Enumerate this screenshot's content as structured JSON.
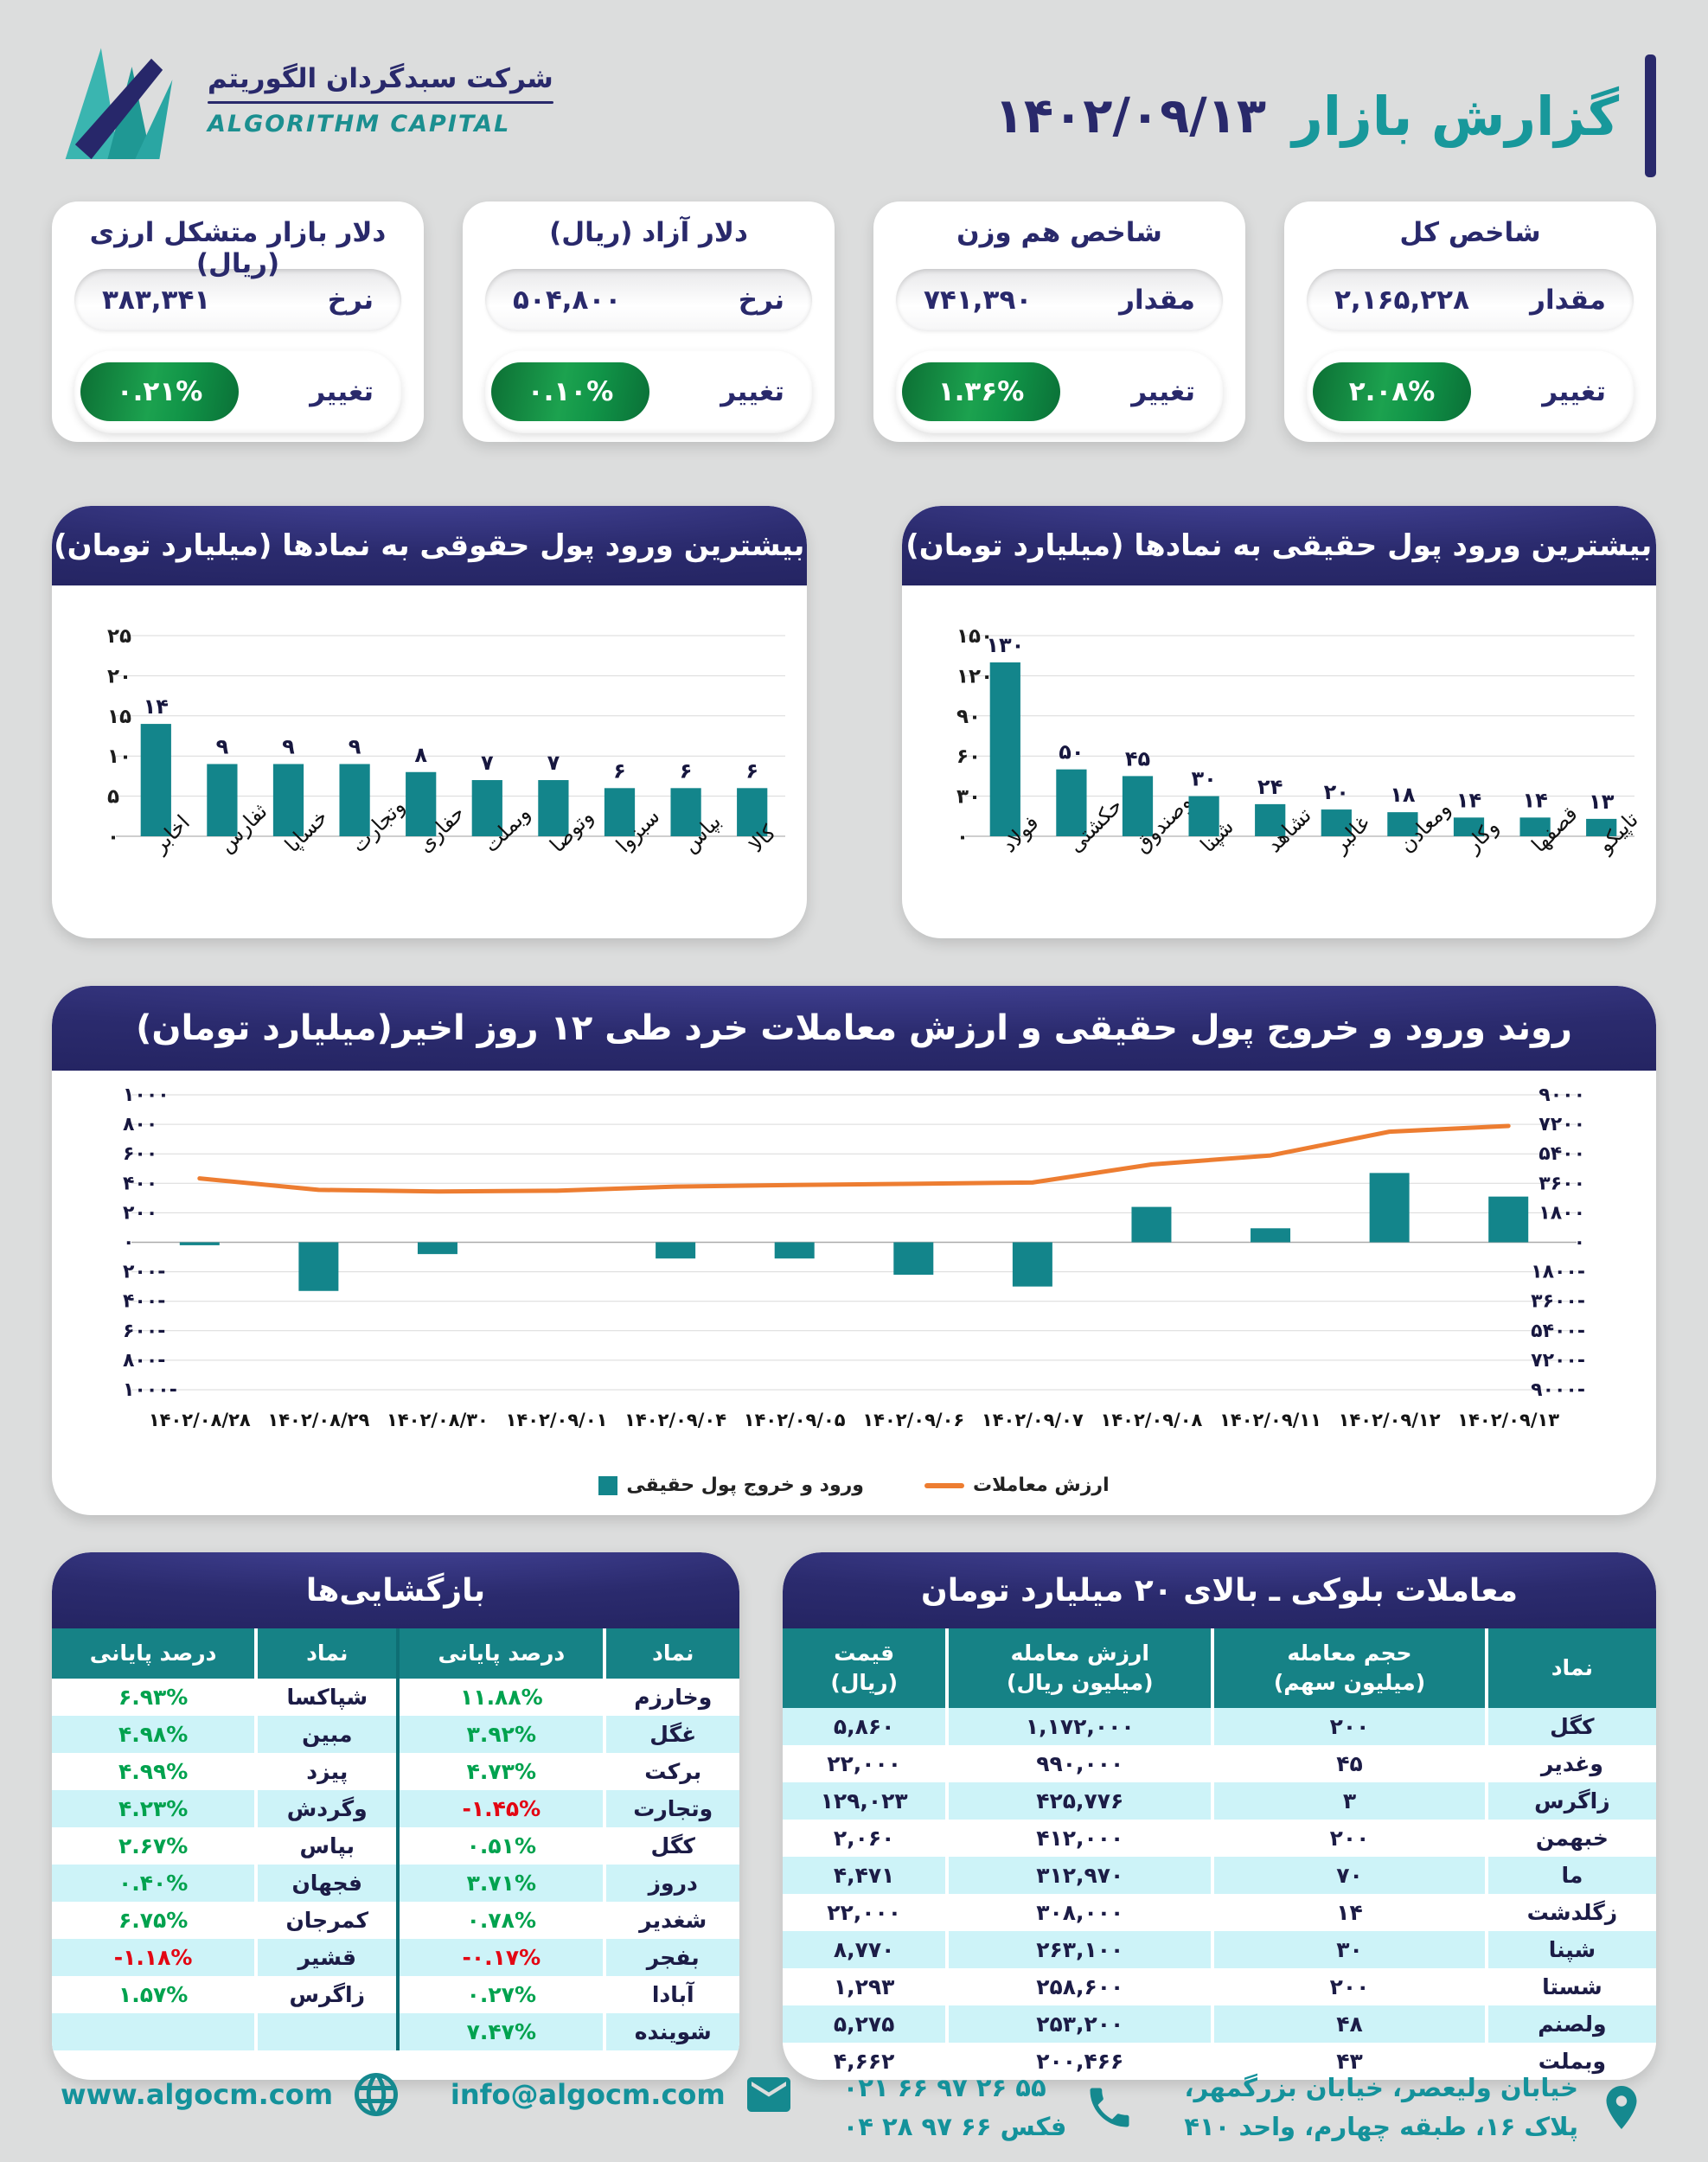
{
  "colors": {
    "background": "#DCDDDD",
    "navy": "#29296B",
    "teal": "#18989B",
    "bar_teal": "#13858B",
    "green_badge": "#13984A",
    "green_text": "#00A24E",
    "red_text": "#E30613",
    "orange_line": "#ED7D31",
    "row_cyan": "#CDF3F8",
    "table_header_teal": "#168286"
  },
  "header": {
    "title": "گزارش بازار",
    "date": "۱۴۰۲/۰۹/۱۳",
    "company_fa": "شرکت سبدگردان الگوریتم",
    "company_en": "ALGORITHM CAPITAL"
  },
  "stat_cards": [
    {
      "title": "شاخص کل",
      "value_label": "مقدار",
      "value": "۲,۱۶۵,۲۲۸",
      "change_label": "تغییر",
      "change": "۲.۰۸%"
    },
    {
      "title": "شاخص هم وزن",
      "value_label": "مقدار",
      "value": "۷۴۱,۳۹۰",
      "change_label": "تغییر",
      "change": "۱.۳۶%"
    },
    {
      "title": "دلار آزاد (ریال)",
      "value_label": "نرخ",
      "value": "۵۰۴,۸۰۰",
      "change_label": "تغییر",
      "change": "۰.۱۰%"
    },
    {
      "title": "دلار بازار متشکل ارزی (ریال)",
      "value_label": "نرخ",
      "value": "۳۸۳,۳۴۱",
      "change_label": "تغییر",
      "change": "۰.۲۱%"
    }
  ],
  "chart_data": [
    {
      "id": "legal_inflow",
      "type": "bar",
      "title": "بیشترین ورود پول حقوقی به نمادها (میلیارد تومان)",
      "categories": [
        "اخابر",
        "ثفارس",
        "خساپا",
        "وتجارت",
        "حفاری",
        "وبملت",
        "وتوصا",
        "سبزوا",
        "بپاس",
        "کالا"
      ],
      "values": [
        14,
        9,
        9,
        9,
        8,
        7,
        7,
        6,
        6,
        6
      ],
      "ylim": [
        0,
        25
      ],
      "ystep": 5,
      "grid": true,
      "bar_color": "#13858B"
    },
    {
      "id": "real_inflow",
      "type": "bar",
      "title": "بیشترین ورود پول حقیقی به نمادها (میلیارد تومان)",
      "categories": [
        "فولاد",
        "حکشتی",
        "وصندوق",
        "شپنا",
        "تشاهد",
        "غالبر",
        "ومعادن",
        "وکار",
        "قصفها",
        "تاپیکو"
      ],
      "values": [
        130,
        50,
        45,
        30,
        24,
        20,
        18,
        14,
        14,
        13
      ],
      "ylim": [
        0,
        150
      ],
      "ystep": 30,
      "grid": true,
      "bar_color": "#13858B"
    },
    {
      "id": "trend",
      "type": "bar+line",
      "title": "روند ورود و خروج پول حقیقی و ارزش معاملات خرد طی ۱۲ روز اخیر(میلیارد تومان)",
      "categories": [
        "۱۴۰۲/۰۸/۲۸",
        "۱۴۰۲/۰۸/۲۹",
        "۱۴۰۲/۰۸/۳۰",
        "۱۴۰۲/۰۹/۰۱",
        "۱۴۰۲/۰۹/۰۴",
        "۱۴۰۲/۰۹/۰۵",
        "۱۴۰۲/۰۹/۰۶",
        "۱۴۰۲/۰۹/۰۷",
        "۱۴۰۲/۰۹/۰۸",
        "۱۴۰۲/۰۹/۱۱",
        "۱۴۰۲/۰۹/۱۲",
        "۱۴۰۲/۰۹/۱۳"
      ],
      "series": [
        {
          "name": "ورود و خروج پول حقیقی",
          "type": "bar",
          "axis": "left",
          "color": "#13858B",
          "values": [
            -20,
            -330,
            -80,
            0,
            -110,
            -110,
            -220,
            -300,
            240,
            95,
            470,
            310
          ]
        },
        {
          "name": "ارزش معاملات",
          "type": "line",
          "axis": "right",
          "color": "#ED7D31",
          "values": [
            3900,
            3200,
            3100,
            3150,
            3400,
            3500,
            3570,
            3650,
            4750,
            5300,
            6750,
            7100
          ]
        }
      ],
      "left_ylim": [
        -1000,
        1000
      ],
      "left_ystep": 200,
      "right_ylim": [
        -9000,
        9000
      ],
      "right_ystep": 1800,
      "grid": true,
      "legend_position": "bottom"
    }
  ],
  "tables": {
    "block_trades": {
      "title": "معاملات بلوکی ـ بالای ۲۰ میلیارد تومان",
      "columns": [
        "نماد",
        "حجم معامله\n(میلیون سهم)",
        "ارزش معامله\n(میلیون ریال)",
        "قیمت\n(ریال)"
      ],
      "rows": [
        [
          [
            "کگل",
            ""
          ],
          [
            "۲۰۰",
            "num"
          ],
          [
            "۱,۱۷۲,۰۰۰",
            "num"
          ],
          [
            "۵,۸۶۰",
            "num"
          ]
        ],
        [
          [
            "وغدیر",
            ""
          ],
          [
            "۴۵",
            "num"
          ],
          [
            "۹۹۰,۰۰۰",
            "num"
          ],
          [
            "۲۲,۰۰۰",
            "num"
          ]
        ],
        [
          [
            "زاگرس",
            ""
          ],
          [
            "۳",
            "num"
          ],
          [
            "۴۲۵,۷۷۶",
            "num"
          ],
          [
            "۱۲۹,۰۲۳",
            "num"
          ]
        ],
        [
          [
            "خبهمن",
            ""
          ],
          [
            "۲۰۰",
            "num"
          ],
          [
            "۴۱۲,۰۰۰",
            "num"
          ],
          [
            "۲,۰۶۰",
            "num"
          ]
        ],
        [
          [
            "ما",
            ""
          ],
          [
            "۷۰",
            "num"
          ],
          [
            "۳۱۲,۹۷۰",
            "num"
          ],
          [
            "۴,۴۷۱",
            "num"
          ]
        ],
        [
          [
            "زگلدشت",
            ""
          ],
          [
            "۱۴",
            "num"
          ],
          [
            "۳۰۸,۰۰۰",
            "num"
          ],
          [
            "۲۲,۰۰۰",
            "num"
          ]
        ],
        [
          [
            "شپنا",
            ""
          ],
          [
            "۳۰",
            "num"
          ],
          [
            "۲۶۳,۱۰۰",
            "num"
          ],
          [
            "۸,۷۷۰",
            "num"
          ]
        ],
        [
          [
            "شستا",
            ""
          ],
          [
            "۲۰۰",
            "num"
          ],
          [
            "۲۵۸,۶۰۰",
            "num"
          ],
          [
            "۱,۲۹۳",
            "num"
          ]
        ],
        [
          [
            "ولصنم",
            ""
          ],
          [
            "۴۸",
            "num"
          ],
          [
            "۲۵۳,۲۰۰",
            "num"
          ],
          [
            "۵,۲۷۵",
            "num"
          ]
        ],
        [
          [
            "وبملت",
            ""
          ],
          [
            "۴۳",
            "num"
          ],
          [
            "۲۰۰,۴۶۶",
            "num"
          ],
          [
            "۴,۶۶۲",
            "num"
          ]
        ]
      ]
    },
    "reopenings": {
      "title": "بازگشایی‌ها",
      "columns": [
        "نماد",
        "درصد پایانی",
        "نماد",
        "درصد پایانی"
      ],
      "rows": [
        [
          [
            "وخارزم",
            ""
          ],
          [
            "۱۱.۸۸%",
            "num g"
          ],
          [
            "شپاکسا",
            ""
          ],
          [
            "۶.۹۳%",
            "num g"
          ]
        ],
        [
          [
            "غگل",
            ""
          ],
          [
            "۳.۹۲%",
            "num g"
          ],
          [
            "مبین",
            ""
          ],
          [
            "۴.۹۸%",
            "num g"
          ]
        ],
        [
          [
            "برکت",
            ""
          ],
          [
            "۴.۷۳%",
            "num g"
          ],
          [
            "پیزد",
            ""
          ],
          [
            "۴.۹۹%",
            "num g"
          ]
        ],
        [
          [
            "وتجارت",
            ""
          ],
          [
            "-۱.۴۵%",
            "num r"
          ],
          [
            "وگردش",
            ""
          ],
          [
            "۴.۲۳%",
            "num g"
          ]
        ],
        [
          [
            "کگل",
            ""
          ],
          [
            "۰.۵۱%",
            "num g"
          ],
          [
            "بپاس",
            ""
          ],
          [
            "۲.۶۷%",
            "num g"
          ]
        ],
        [
          [
            "دروز",
            ""
          ],
          [
            "۳.۷۱%",
            "num g"
          ],
          [
            "فجهان",
            ""
          ],
          [
            "۰.۴۰%",
            "num g"
          ]
        ],
        [
          [
            "شغدیر",
            ""
          ],
          [
            "۰.۷۸%",
            "num g"
          ],
          [
            "کمرجان",
            ""
          ],
          [
            "۶.۷۵%",
            "num g"
          ]
        ],
        [
          [
            "بفجر",
            ""
          ],
          [
            "-۰.۱۷%",
            "num r"
          ],
          [
            "قشیر",
            ""
          ],
          [
            "-۱.۱۸%",
            "num r"
          ]
        ],
        [
          [
            "آبادا",
            ""
          ],
          [
            "۰.۲۷%",
            "num g"
          ],
          [
            "زاگرس",
            ""
          ],
          [
            "۱.۵۷%",
            "num g"
          ]
        ],
        [
          [
            "شوینده",
            ""
          ],
          [
            "۷.۴۷%",
            "num g"
          ],
          [
            "",
            ""
          ],
          [
            "",
            ""
          ]
        ]
      ]
    }
  },
  "footer": {
    "website": "www.algocm.com",
    "email": "info@algocm.com",
    "phone": "۰۲۱ ۶۶ ۹۷ ۲۶ ۵۵",
    "fax": "۰۴ ۲۸ ۹۷ ۶۶ فکس",
    "address_line1": "خیابان ولیعصر، خیابان بزرگمهر،",
    "address_line2": "پلاک ۱۶، طبقه چهارم، واحد ۴۱۰"
  }
}
